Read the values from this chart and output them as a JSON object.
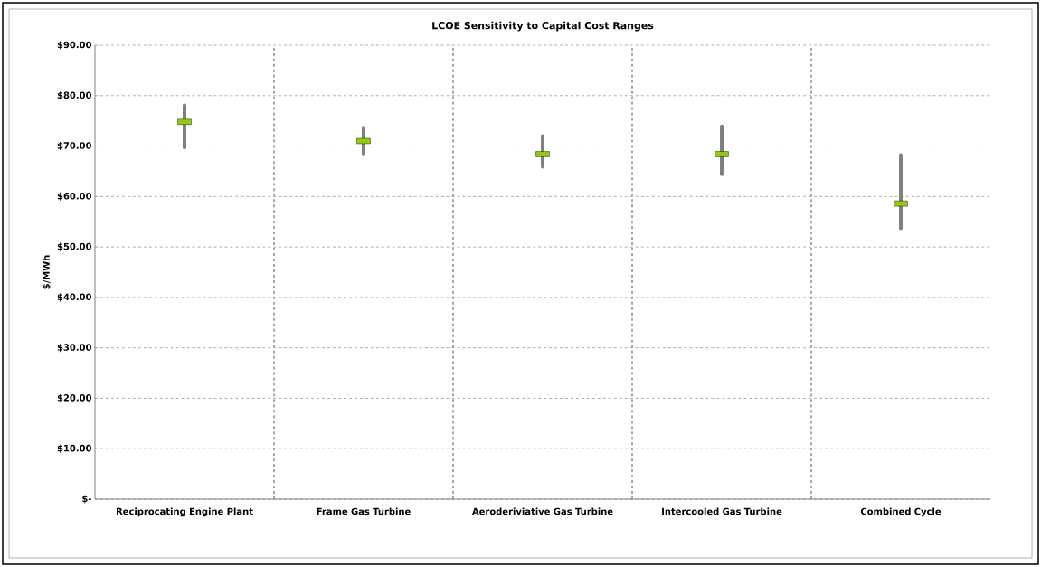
{
  "chart_data": {
    "type": "bar",
    "title": "LCOE Sensitivity to Capital Cost Ranges",
    "ylabel": "$/MWh",
    "categories": [
      "Reciprocating Engine Plant",
      "Frame Gas Turbine",
      "Aeroderiviative Gas Turbine",
      "Intercooled Gas Turbine",
      "Combined Cycle"
    ],
    "series": [
      {
        "color": "#808080",
        "base": [
          69.7,
          68.5,
          65.9,
          64.4,
          53.7
        ],
        "values": [
          8.4,
          5.2,
          6.1,
          9.5,
          14.5
        ]
      },
      {
        "type": "scatter",
        "color": "#92c816",
        "values": [
          74.8,
          71.0,
          68.4,
          68.4,
          58.6
        ]
      }
    ],
    "ylim": [
      0,
      90
    ],
    "yticks": [
      {
        "value": 0,
        "label": "$-"
      },
      {
        "value": 10,
        "label": "$10.00"
      },
      {
        "value": 20,
        "label": "$20.00"
      },
      {
        "value": 30,
        "label": "$30.00"
      },
      {
        "value": 40,
        "label": "$40.00"
      },
      {
        "value": 50,
        "label": "$50.00"
      },
      {
        "value": 60,
        "label": "$60.00"
      },
      {
        "value": 70,
        "label": "$70.00"
      },
      {
        "value": 80,
        "label": "$80.00"
      },
      {
        "value": 90,
        "label": "$90.00"
      }
    ],
    "grid": "y"
  }
}
